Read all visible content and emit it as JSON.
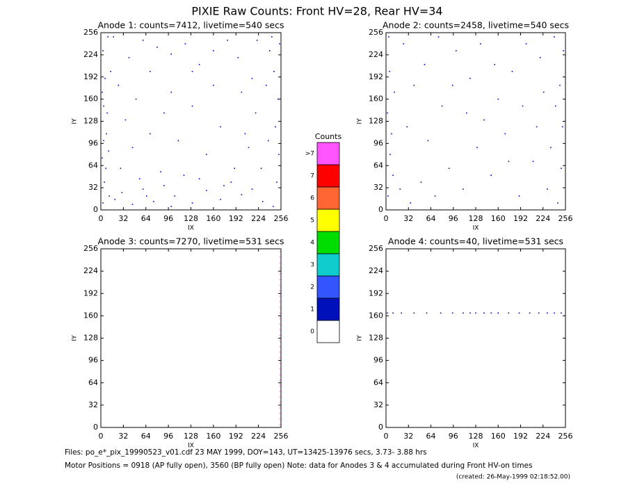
{
  "title": "PIXIE Raw Counts:  Front HV=28, Rear HV=34",
  "chart_data": [
    {
      "type": "scatter",
      "title": "Anode 1: counts=7412, livetime=540 secs",
      "x_label": "IX",
      "y_label": "IY",
      "xlim": [
        0,
        256
      ],
      "ylim": [
        0,
        256
      ],
      "xticks": [
        0,
        32,
        64,
        96,
        128,
        160,
        192,
        224,
        256
      ],
      "yticks": [
        0,
        32,
        64,
        96,
        128,
        160,
        192,
        224,
        256
      ],
      "color": "#0000cc",
      "x": [
        3,
        5,
        2,
        8,
        4,
        6,
        3,
        10,
        12,
        7,
        9,
        14,
        4,
        2,
        11,
        20,
        30,
        45,
        60,
        75,
        90,
        105,
        118,
        130,
        150,
        170,
        185,
        200,
        215,
        230,
        245,
        250,
        253,
        248,
        252,
        246,
        254,
        240,
        235,
        238,
        228,
        220,
        210,
        200,
        195,
        180,
        160,
        140,
        120,
        100,
        80,
        60,
        40,
        25,
        35,
        50,
        70,
        90,
        110,
        130,
        150,
        170,
        190,
        160,
        130,
        100,
        70,
        45,
        28,
        18,
        243,
        222,
        205,
        215,
        55,
        85,
        65,
        100,
        140,
        175
      ],
      "y": [
        10,
        40,
        75,
        110,
        150,
        190,
        230,
        250,
        20,
        60,
        140,
        200,
        100,
        170,
        85,
        15,
        25,
        8,
        30,
        12,
        35,
        20,
        50,
        10,
        28,
        15,
        40,
        22,
        30,
        12,
        5,
        40,
        80,
        120,
        160,
        200,
        240,
        230,
        180,
        100,
        60,
        140,
        90,
        170,
        220,
        245,
        230,
        210,
        240,
        225,
        235,
        245,
        220,
        180,
        130,
        160,
        110,
        140,
        100,
        150,
        80,
        120,
        60,
        180,
        200,
        170,
        200,
        90,
        60,
        250,
        250,
        245,
        110,
        190,
        45,
        55,
        20,
        5,
        45,
        35
      ]
    },
    {
      "type": "scatter",
      "title": "Anode 2: counts=2458, livetime=540 secs",
      "x_label": "IX",
      "y_label": "IY",
      "xlim": [
        0,
        256
      ],
      "ylim": [
        0,
        256
      ],
      "xticks": [
        0,
        32,
        64,
        96,
        128,
        160,
        192,
        224,
        256
      ],
      "yticks": [
        0,
        32,
        64,
        96,
        128,
        160,
        192,
        224,
        256
      ],
      "color": "#0000cc",
      "x": [
        3,
        6,
        2,
        5,
        4,
        10,
        12,
        8,
        20,
        35,
        50,
        70,
        90,
        110,
        130,
        150,
        170,
        190,
        210,
        230,
        245,
        250,
        252,
        248,
        253,
        240,
        220,
        200,
        180,
        160,
        140,
        120,
        100,
        80,
        60,
        40,
        25,
        30,
        55,
        75,
        95,
        115,
        135,
        155,
        175,
        195,
        215,
        235,
        242,
        225
      ],
      "y": [
        20,
        80,
        140,
        200,
        250,
        50,
        170,
        110,
        30,
        10,
        40,
        20,
        60,
        30,
        90,
        50,
        110,
        20,
        70,
        30,
        10,
        60,
        120,
        180,
        230,
        250,
        220,
        240,
        200,
        160,
        130,
        190,
        230,
        150,
        100,
        180,
        240,
        120,
        210,
        250,
        180,
        140,
        240,
        210,
        70,
        150,
        120,
        90,
        150,
        170
      ]
    },
    {
      "type": "scatter",
      "title": "Anode 3: counts=7270, livetime=531 secs",
      "x_label": "IX",
      "y_label": "IY",
      "xlim": [
        0,
        256
      ],
      "ylim": [
        0,
        256
      ],
      "xticks": [
        0,
        32,
        64,
        96,
        128,
        160,
        192,
        224,
        256
      ],
      "yticks": [
        0,
        32,
        64,
        96,
        128,
        160,
        192,
        224,
        256
      ],
      "color": "#ff55ff",
      "x": [
        255,
        255,
        255,
        255,
        255,
        255,
        255,
        255,
        255,
        255,
        255,
        255,
        255,
        255,
        255,
        255,
        255,
        255,
        255,
        255,
        255,
        255,
        255,
        255,
        255,
        255,
        255,
        255,
        255,
        255,
        255,
        255
      ],
      "y": [
        4,
        12,
        20,
        28,
        36,
        44,
        52,
        60,
        68,
        76,
        84,
        92,
        100,
        108,
        116,
        124,
        132,
        140,
        148,
        156,
        164,
        172,
        180,
        188,
        196,
        204,
        212,
        220,
        228,
        236,
        244,
        252
      ]
    },
    {
      "type": "scatter",
      "title": "Anode 4: counts=40, livetime=531 secs",
      "x_label": "IX",
      "y_label": "IY",
      "xlim": [
        0,
        256
      ],
      "ylim": [
        0,
        256
      ],
      "xticks": [
        0,
        32,
        64,
        96,
        128,
        160,
        192,
        224,
        256
      ],
      "yticks": [
        0,
        32,
        64,
        96,
        128,
        160,
        192,
        224,
        256
      ],
      "color": "#0000aa",
      "x": [
        2,
        10,
        22,
        40,
        58,
        78,
        95,
        110,
        120,
        128,
        140,
        150,
        160,
        175,
        190,
        205,
        218,
        230,
        240,
        250
      ],
      "y": [
        164,
        164,
        164,
        164,
        164,
        164,
        164,
        164,
        164,
        164,
        164,
        164,
        164,
        164,
        164,
        164,
        164,
        164,
        164,
        164
      ]
    },
    {
      "type": "colorbar",
      "title": "Counts",
      "categories": [
        "0",
        "1",
        "2",
        "3",
        "4",
        "5",
        "6",
        "7",
        ">7"
      ],
      "colors": [
        "#ffffff",
        "#0011bb",
        "#3355ff",
        "#11cccc",
        "#00dd00",
        "#ffff00",
        "#ff6633",
        "#ff0000",
        "#ff55ff"
      ]
    }
  ],
  "footer": {
    "files": "Files: po_e*_pix_19990523_v01.cdf    23 MAY 1999, DOY=143, UT=13425-13976 secs,  3.73- 3.88 hrs",
    "motor": "Motor Positions = 0918 (AP fully open), 3560 (BP fully open)    Note: data for Anodes 3 & 4 accumulated during Front HV-on times",
    "created": "(created: 26-May-1999 02:18:52.00)"
  }
}
